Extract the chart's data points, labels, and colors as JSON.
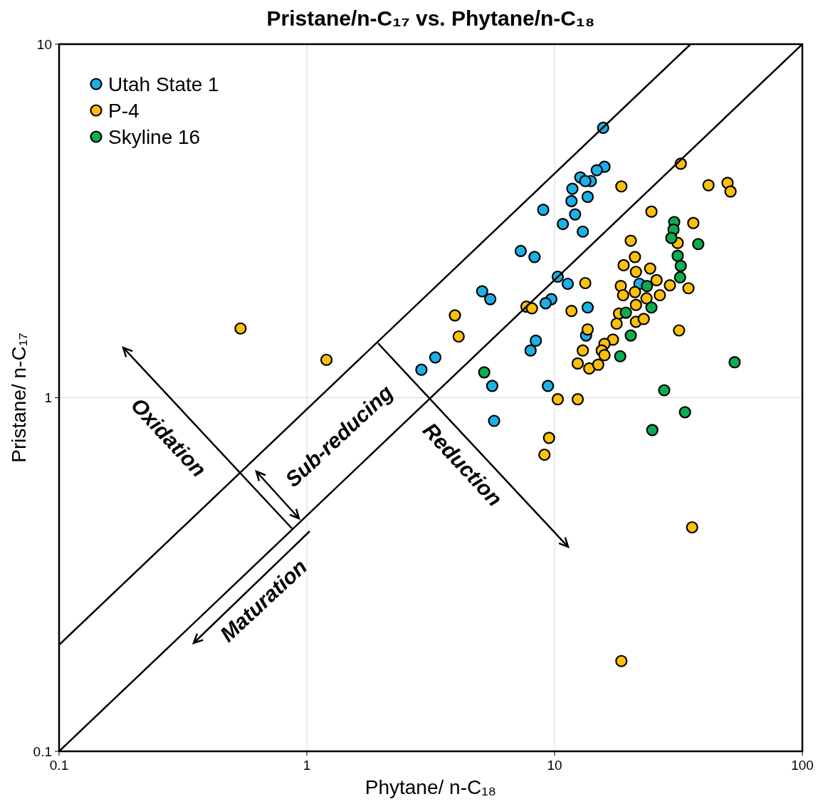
{
  "chart_data": {
    "type": "scatter",
    "title": "Pristane/n-C₁₇ vs. Phytane/n-C₁₈",
    "xlabel": "Phytane/ n-C₁₈",
    "ylabel": "Pristane/ n-C₁₇",
    "log": "xy",
    "xlim": [
      0.1,
      100
    ],
    "ylim": [
      0.1,
      10
    ],
    "xticks": [
      0.1,
      1,
      10,
      100
    ],
    "yticks": [
      0.1,
      1,
      10
    ],
    "grid": true,
    "legend": "top left",
    "marker": "circle",
    "annotations": [
      "Oxidation",
      "Sub-reducing",
      "Reduction",
      "Maturation"
    ],
    "series": [
      {
        "name": "Utah State 1",
        "color": "#1cb0e8",
        "x": [
          15.7,
          15.9,
          14.8,
          12.7,
          14.0,
          13.3,
          11.8,
          13.6,
          11.7,
          12.1,
          9.0,
          10.8,
          13.0,
          7.3,
          8.3,
          10.3,
          11.3,
          5.1,
          5.5,
          9.7,
          9.2,
          13.6,
          13.4,
          8.4,
          8.0,
          3.3,
          2.9,
          5.6,
          9.4,
          5.7,
          22.0
        ],
        "values": [
          5.8,
          4.5,
          4.4,
          4.2,
          4.1,
          4.1,
          3.9,
          3.7,
          3.6,
          3.3,
          3.4,
          3.1,
          2.95,
          2.6,
          2.5,
          2.2,
          2.1,
          2.0,
          1.9,
          1.9,
          1.85,
          1.8,
          1.5,
          1.45,
          1.36,
          1.3,
          1.2,
          1.08,
          1.08,
          0.86,
          2.1
        ]
      },
      {
        "name": "P-4",
        "color": "#fcc00c",
        "x": [
          0.54,
          1.2,
          3.96,
          4.1,
          7.7,
          8.1,
          11.7,
          13.3,
          13.6,
          13.0,
          12.4,
          13.8,
          15.0,
          10.3,
          12.4,
          9.5,
          9.1,
          18.6,
          32.3,
          41.8,
          49.9,
          51.3,
          24.6,
          36.3,
          20.3,
          31.4,
          21.1,
          19.0,
          24.3,
          21.3,
          25.8,
          29.2,
          34.7,
          18.5,
          18.9,
          21.1,
          23.5,
          26.6,
          21.3,
          18.2,
          17.8,
          21.3,
          22.9,
          17.2,
          15.9,
          15.5,
          15.9,
          31.8,
          35.9,
          18.6
        ],
        "values": [
          1.57,
          1.28,
          1.71,
          1.49,
          1.81,
          1.79,
          1.76,
          2.11,
          1.56,
          1.36,
          1.25,
          1.21,
          1.24,
          0.99,
          0.99,
          0.77,
          0.69,
          3.96,
          4.59,
          3.99,
          4.05,
          3.83,
          3.36,
          3.12,
          2.78,
          2.74,
          2.5,
          2.37,
          2.32,
          2.27,
          2.15,
          2.08,
          2.04,
          2.07,
          1.95,
          1.99,
          1.91,
          1.95,
          1.83,
          1.73,
          1.62,
          1.64,
          1.67,
          1.46,
          1.42,
          1.36,
          1.32,
          1.55,
          0.43,
          0.18
        ]
      },
      {
        "name": "Skyline 16",
        "color": "#0aad50",
        "x": [
          30.4,
          30.2,
          29.6,
          38.0,
          31.4,
          32.3,
          32.1,
          23.6,
          24.6,
          19.4,
          20.3,
          18.4,
          53.3,
          27.7,
          33.6,
          24.8,
          5.2
        ],
        "values": [
          3.14,
          2.99,
          2.83,
          2.72,
          2.52,
          2.36,
          2.19,
          2.07,
          1.8,
          1.74,
          1.5,
          1.31,
          1.26,
          1.05,
          0.91,
          0.81,
          1.18
        ]
      },
      {
        "type": "line",
        "color": "#000000",
        "marker": "none",
        "x": [
          0.1,
          35.4
        ],
        "values": [
          0.2,
          10
        ]
      },
      {
        "type": "line",
        "color": "#000000",
        "marker": "none",
        "x": [
          0.1,
          100
        ],
        "values": [
          0.1,
          10
        ]
      }
    ]
  }
}
